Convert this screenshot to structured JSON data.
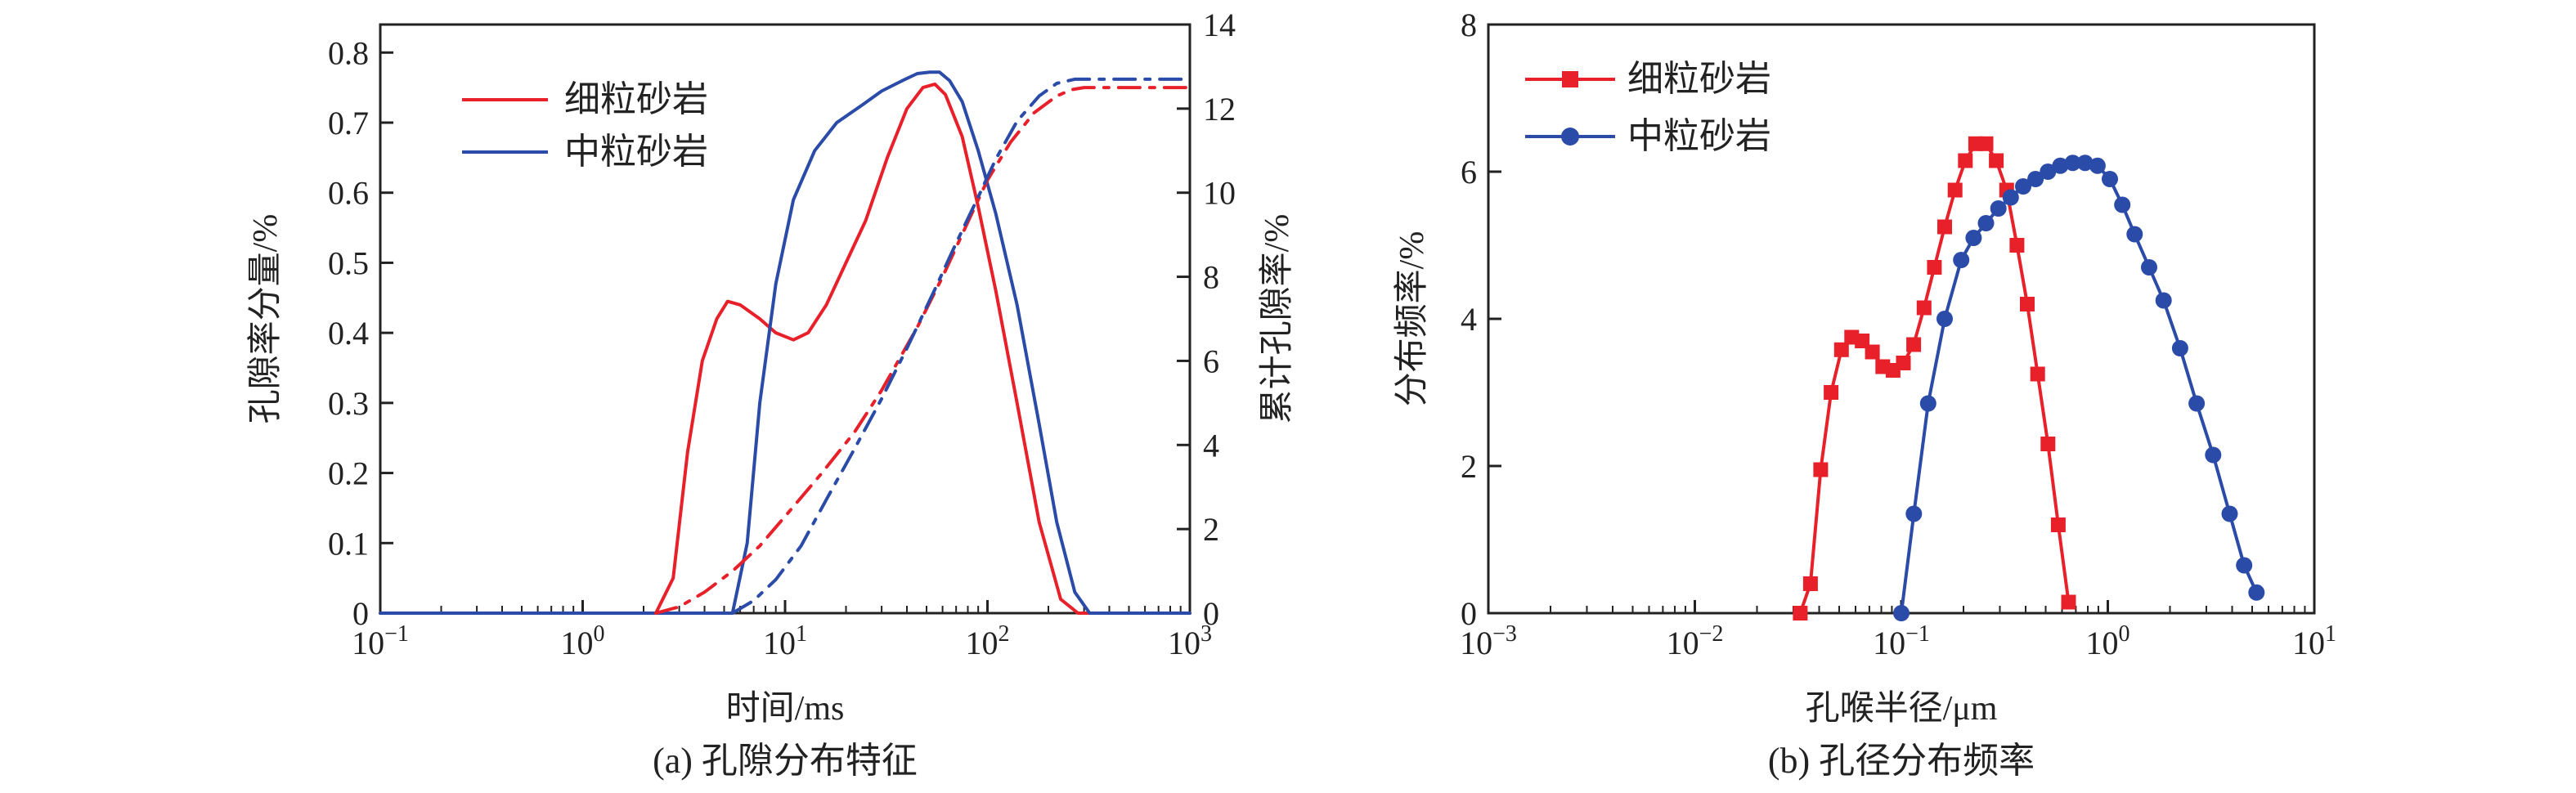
{
  "colors": {
    "red": "#e8202a",
    "blue": "#2b4ba8",
    "axis": "#222222"
  },
  "chart_data": [
    {
      "type": "line",
      "caption": "(a) 孔隙分布特征",
      "xlabel": "时间/ms",
      "ylabel": "孔隙率分量/%",
      "y2label": "累计孔隙率/%",
      "xscale": "log",
      "xlim": [
        0.1,
        1000
      ],
      "ylim": [
        0,
        0.84
      ],
      "y2lim": [
        0,
        14
      ],
      "xticks": [
        {
          "v": 0.1,
          "base": "10",
          "exp": "−1"
        },
        {
          "v": 1,
          "base": "10",
          "exp": "0"
        },
        {
          "v": 10,
          "base": "10",
          "exp": "1"
        },
        {
          "v": 100,
          "base": "10",
          "exp": "2"
        },
        {
          "v": 1000,
          "base": "10",
          "exp": "3"
        }
      ],
      "yticks": [
        "0",
        "0.1",
        "0.2",
        "0.3",
        "0.4",
        "0.5",
        "0.6",
        "0.7",
        "0.8"
      ],
      "y2ticks": [
        "0",
        "2",
        "4",
        "6",
        "8",
        "10",
        "12",
        "14"
      ],
      "legend": {
        "position": "top-left",
        "entries": [
          "细粒砂岩",
          "中粒砂岩"
        ]
      },
      "series": [
        {
          "name": "细粒砂岩",
          "axis": "left",
          "style": "solid",
          "color": "red",
          "x": [
            0.1,
            2.3,
            2.8,
            3.3,
            3.9,
            4.6,
            5.2,
            6.0,
            7.5,
            9.0,
            11.0,
            13.0,
            16.0,
            20.0,
            25.0,
            32.0,
            40.0,
            48.0,
            55.0,
            62.0,
            75.0,
            90.0,
            110.0,
            140.0,
            180.0,
            230.0,
            280.0,
            330.0,
            400.0,
            1000.0
          ],
          "y": [
            0,
            0.0,
            0.05,
            0.23,
            0.36,
            0.42,
            0.445,
            0.44,
            0.42,
            0.4,
            0.39,
            0.4,
            0.44,
            0.5,
            0.56,
            0.65,
            0.72,
            0.75,
            0.755,
            0.74,
            0.68,
            0.58,
            0.46,
            0.3,
            0.13,
            0.02,
            0.0,
            0.0,
            0.0,
            0.0
          ]
        },
        {
          "name": "中粒砂岩",
          "axis": "left",
          "style": "solid",
          "color": "blue",
          "x": [
            0.1,
            5.5,
            6.5,
            7.5,
            9.0,
            11.0,
            14.0,
            18.0,
            24.0,
            30.0,
            38.0,
            45.0,
            52.0,
            58.0,
            65.0,
            75.0,
            90.0,
            110.0,
            140.0,
            180.0,
            220.0,
            270.0,
            320.0,
            380.0,
            1000.0
          ],
          "y": [
            0,
            0.0,
            0.1,
            0.3,
            0.47,
            0.59,
            0.66,
            0.7,
            0.725,
            0.745,
            0.76,
            0.77,
            0.772,
            0.772,
            0.76,
            0.73,
            0.66,
            0.57,
            0.44,
            0.27,
            0.13,
            0.03,
            0.0,
            0.0,
            0.0
          ]
        },
        {
          "name": "细粒砂岩 累计",
          "axis": "right",
          "style": "dashdot",
          "color": "red",
          "x": [
            2.3,
            3.0,
            4.0,
            5.5,
            7.5,
            10.0,
            15.0,
            22.0,
            30.0,
            45.0,
            60.0,
            80.0,
            100.0,
            130.0,
            170.0,
            220.0,
            260.0,
            300.0,
            400.0,
            1000.0
          ],
          "y": [
            0.0,
            0.15,
            0.5,
            1.0,
            1.6,
            2.3,
            3.3,
            4.3,
            5.3,
            6.8,
            8.0,
            9.3,
            10.3,
            11.2,
            11.9,
            12.3,
            12.45,
            12.5,
            12.5,
            12.5
          ]
        },
        {
          "name": "中粒砂岩 累计",
          "axis": "right",
          "style": "dashdot",
          "color": "blue",
          "x": [
            5.5,
            7.0,
            9.0,
            12.0,
            16.0,
            22.0,
            30.0,
            40.0,
            55.0,
            70.0,
            90.0,
            110.0,
            140.0,
            180.0,
            220.0,
            270.0,
            350.0,
            450.0,
            1000.0
          ],
          "y": [
            0.0,
            0.3,
            0.8,
            1.6,
            2.7,
            3.9,
            5.1,
            6.3,
            7.7,
            8.8,
            9.9,
            10.8,
            11.7,
            12.3,
            12.6,
            12.7,
            12.7,
            12.7,
            12.7
          ]
        }
      ]
    },
    {
      "type": "line",
      "caption": "(b) 孔径分布频率",
      "xlabel": "孔喉半径/μm",
      "ylabel": "分布频率/%",
      "xscale": "log",
      "xlim": [
        0.001,
        10
      ],
      "ylim": [
        0,
        8
      ],
      "xticks": [
        {
          "v": 0.001,
          "base": "10",
          "exp": "−3"
        },
        {
          "v": 0.01,
          "base": "10",
          "exp": "−2"
        },
        {
          "v": 0.1,
          "base": "10",
          "exp": "−1"
        },
        {
          "v": 1,
          "base": "10",
          "exp": "0"
        },
        {
          "v": 10,
          "base": "10",
          "exp": "1"
        }
      ],
      "yticks": [
        "0",
        "2",
        "4",
        "6",
        "8"
      ],
      "legend": {
        "position": "top-left",
        "entries": [
          "细粒砂岩",
          "中粒砂岩"
        ]
      },
      "series": [
        {
          "name": "细粒砂岩",
          "marker": "square",
          "color": "red",
          "x": [
            0.0324,
            0.0363,
            0.0407,
            0.0457,
            0.0513,
            0.0575,
            0.0646,
            0.0724,
            0.0813,
            0.0912,
            0.1023,
            0.1148,
            0.1288,
            0.1445,
            0.1622,
            0.182,
            0.2042,
            0.2291,
            0.257,
            0.2884,
            0.3236,
            0.3631,
            0.4074,
            0.4571,
            0.5129,
            0.5754,
            0.6457
          ],
          "y": [
            0.0,
            0.4,
            1.95,
            3.0,
            3.58,
            3.75,
            3.7,
            3.55,
            3.35,
            3.3,
            3.4,
            3.65,
            4.15,
            4.7,
            5.25,
            5.75,
            6.15,
            6.38,
            6.38,
            6.15,
            5.75,
            5.0,
            4.2,
            3.25,
            2.3,
            1.2,
            0.15
          ]
        },
        {
          "name": "中粒砂岩",
          "marker": "circle",
          "color": "blue",
          "x": [
            0.1,
            0.115,
            0.1349,
            0.1622,
            0.1949,
            0.2239,
            0.257,
            0.2951,
            0.3388,
            0.389,
            0.4467,
            0.5129,
            0.5888,
            0.6761,
            0.7762,
            0.8913,
            1.0233,
            1.1749,
            1.349,
            1.5849,
            1.8621,
            2.2387,
            2.6915,
            3.2359,
            3.8905,
            4.5709,
            5.2481
          ],
          "y": [
            0.0,
            1.35,
            2.85,
            4.0,
            4.8,
            5.1,
            5.3,
            5.5,
            5.65,
            5.8,
            5.9,
            6.0,
            6.08,
            6.12,
            6.12,
            6.08,
            5.9,
            5.55,
            5.15,
            4.7,
            4.25,
            3.6,
            2.85,
            2.15,
            1.35,
            0.65,
            0.28
          ]
        }
      ]
    }
  ]
}
